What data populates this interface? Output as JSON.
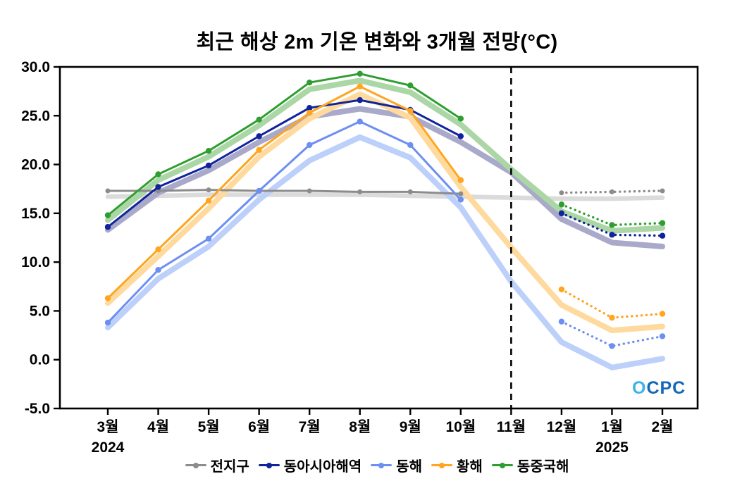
{
  "title": "최근 해상 2m 기온 변화와 3개월 전망(°C)",
  "logo": {
    "o": "O",
    "cpc": "CPC"
  },
  "chart_data": {
    "type": "line",
    "title": "최근 해상 2m 기온 변화와 3개월 전망(°C)",
    "unit": "°C",
    "categories": [
      "3월",
      "4월",
      "5월",
      "6월",
      "7월",
      "8월",
      "9월",
      "10월",
      "11월",
      "12월",
      "1월",
      "2월"
    ],
    "year_labels": [
      {
        "text": "2024",
        "index": 0
      },
      {
        "text": "2025",
        "index": 10
      }
    ],
    "ylim": [
      -5.0,
      30.0
    ],
    "yticks": [
      -5.0,
      0.0,
      5.0,
      10.0,
      15.0,
      20.0,
      25.0,
      30.0
    ],
    "grid": false,
    "legend_position": "bottom",
    "forecast_divider_index": 8,
    "forecast_start_index": 9,
    "forecast_style": "dotted",
    "series": [
      {
        "key": "global",
        "name": "전지구",
        "color": "#8c8c8c",
        "band_color": "#dbdbdb",
        "observed": [
          17.3,
          17.3,
          17.4,
          17.3,
          17.3,
          17.2,
          17.2,
          17.0
        ],
        "forecast": [
          17.1,
          17.2,
          17.3
        ],
        "band": [
          16.7,
          16.8,
          16.9,
          16.9,
          16.9,
          16.9,
          16.8,
          16.7,
          16.6,
          16.5,
          16.5,
          16.6
        ]
      },
      {
        "key": "east-asia-seas",
        "name": "동아시아해역",
        "color": "#10239c",
        "band_color": "#a9a9ca",
        "observed": [
          13.6,
          17.7,
          19.9,
          22.9,
          25.8,
          26.6,
          25.6,
          22.9
        ],
        "forecast": [
          15.0,
          12.8,
          12.7
        ],
        "band": [
          13.3,
          17.1,
          19.4,
          22.3,
          24.9,
          25.7,
          24.9,
          22.3,
          19.2,
          14.4,
          12.0,
          11.6
        ]
      },
      {
        "key": "east-sea",
        "name": "동해",
        "color": "#6d8ff2",
        "band_color": "#bcd0fa",
        "observed": [
          3.8,
          9.2,
          12.4,
          17.3,
          22.0,
          24.4,
          22.0,
          16.4
        ],
        "forecast": [
          3.9,
          1.4,
          2.4
        ],
        "band": [
          3.3,
          8.3,
          11.6,
          16.4,
          20.4,
          22.8,
          20.7,
          15.6,
          8.0,
          1.8,
          -0.8,
          0.1
        ]
      },
      {
        "key": "yellow-sea",
        "name": "황해",
        "color": "#ffa51f",
        "band_color": "#ffda9e",
        "observed": [
          6.3,
          11.3,
          16.3,
          21.5,
          25.3,
          28.0,
          25.5,
          18.4
        ],
        "forecast": [
          7.2,
          4.3,
          4.7
        ],
        "band": [
          5.8,
          10.6,
          15.5,
          20.8,
          24.7,
          27.2,
          24.8,
          17.7,
          11.5,
          5.6,
          3.0,
          3.4
        ]
      },
      {
        "key": "east-china-sea",
        "name": "동중국해",
        "color": "#2f9e30",
        "band_color": "#abd6a5",
        "observed": [
          14.8,
          19.0,
          21.4,
          24.6,
          28.4,
          29.3,
          28.1,
          24.7
        ],
        "forecast": [
          15.9,
          13.8,
          14.0
        ],
        "band": [
          14.3,
          18.4,
          20.8,
          24.0,
          27.7,
          28.6,
          27.4,
          24.1,
          19.5,
          15.2,
          13.2,
          13.5
        ]
      }
    ]
  }
}
